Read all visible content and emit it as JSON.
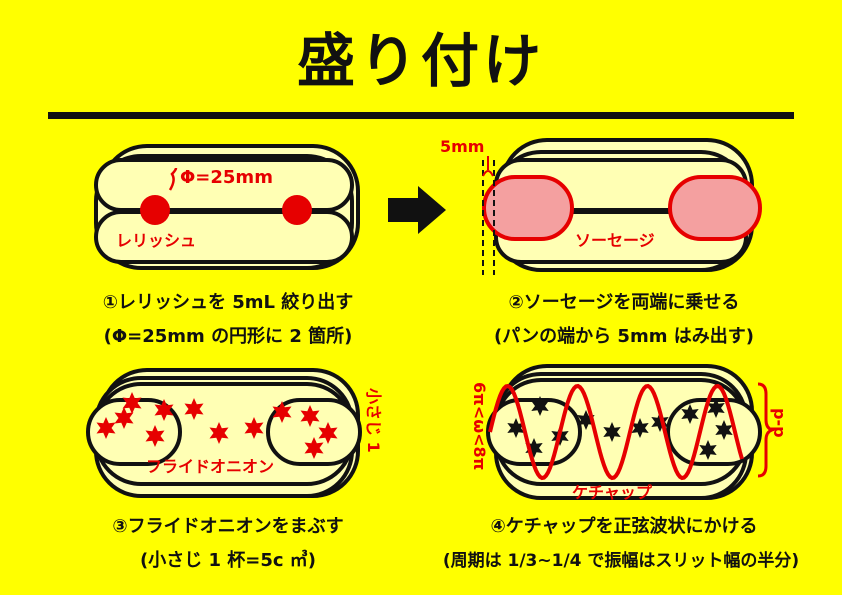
{
  "title": "盛り付け",
  "steps": [
    {
      "caption": "①レリッシュを 5mL 絞り出す",
      "note": "(Φ=25mm の円形に 2 箇所)",
      "label_diameter": "Φ=25mm",
      "label_item": "レリッシュ"
    },
    {
      "caption": "②ソーセージを両端に乗せる",
      "note": "(パンの端から 5mm はみ出す)",
      "label_offset": "5mm",
      "label_item": "ソーセージ"
    },
    {
      "caption": "③フライドオニオンをまぶす",
      "note": "(小さじ 1 杯=5c ㎥)",
      "label_item": "フライドオニオン",
      "label_side": "小さじ 1"
    },
    {
      "caption": "④ケチャップを正弦波状にかける",
      "note": "(周期は 1/3~1/4 で振幅はスリット幅の半分)",
      "label_item": "ケチャップ",
      "label_omega": "6π<ω<8π",
      "label_pp": "p-p"
    }
  ],
  "colors": {
    "background": "#ffff00",
    "bun": "#ffffb4",
    "red": "#e60000",
    "sausage": "#f4a0a0"
  }
}
